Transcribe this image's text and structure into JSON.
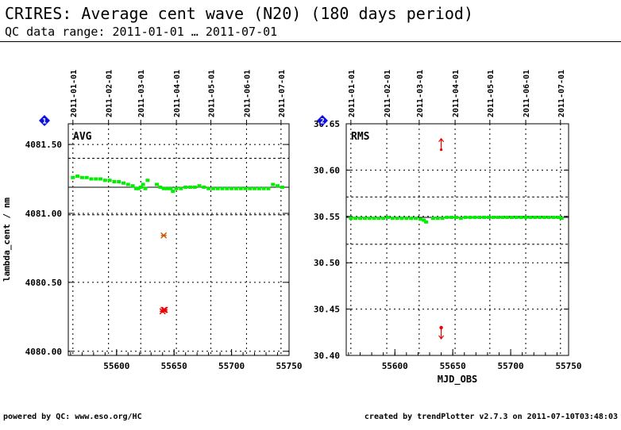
{
  "header": {
    "title": "CRIRES: Average cent wave (N20) (180 days period)",
    "subtitle": "QC data range: 2011-01-01 … 2011-07-01"
  },
  "footer": {
    "left": "powered by QC: www.eso.org/HC",
    "right": "created by trendPlotter v2.7.3 on 2011-07-10T03:48:03"
  },
  "colors": {
    "data": "#00ee00",
    "outlier_dark": "#cc5500",
    "outlier": "#ee0000",
    "marker": "#1010dd"
  },
  "chart_data": [
    {
      "type": "scatter",
      "panel_label": "AVG",
      "marker_label": "1",
      "ylabel": "lambda_cent / nm",
      "xlabel": "",
      "xlim": [
        55558,
        55750
      ],
      "ylim": [
        4079.97,
        4081.65
      ],
      "xticks": [
        55600,
        55650,
        55700,
        55750
      ],
      "yticks": [
        4080.0,
        4080.5,
        4081.0,
        4081.5
      ],
      "ytick_labels": [
        "4080.00",
        "4080.50",
        "4081.00",
        "4081.50"
      ],
      "date_ticks": [
        {
          "mjd": 55562,
          "label": "2011-01-01"
        },
        {
          "mjd": 55593,
          "label": "2011-02-01"
        },
        {
          "mjd": 55621,
          "label": "2011-03-01"
        },
        {
          "mjd": 55652,
          "label": "2011-04-01"
        },
        {
          "mjd": 55682,
          "label": "2011-05-01"
        },
        {
          "mjd": 55713,
          "label": "2011-06-01"
        },
        {
          "mjd": 55743,
          "label": "2011-07-01"
        }
      ],
      "reference_line": 4081.19,
      "threshold_lines": [
        4081.4,
        4080.99
      ],
      "series": [
        {
          "role": "data",
          "x": [
            55562,
            55566,
            55570,
            55574,
            55578,
            55582,
            55586,
            55590,
            55594,
            55598,
            55602,
            55606,
            55610,
            55614,
            55617,
            55619,
            55621,
            55623,
            55625,
            55627,
            55635,
            55638,
            55641,
            55644,
            55647,
            55649,
            55652,
            55656,
            55660,
            55664,
            55668,
            55672,
            55676,
            55680,
            55684,
            55688,
            55692,
            55696,
            55700,
            55704,
            55708,
            55712,
            55716,
            55720,
            55724,
            55728,
            55732,
            55736,
            55740,
            55744
          ],
          "y": [
            4081.26,
            4081.27,
            4081.26,
            4081.26,
            4081.25,
            4081.25,
            4081.25,
            4081.24,
            4081.24,
            4081.23,
            4081.23,
            4081.22,
            4081.21,
            4081.2,
            4081.18,
            4081.18,
            4081.19,
            4081.21,
            4081.18,
            4081.24,
            4081.21,
            4081.19,
            4081.18,
            4081.18,
            4081.18,
            4081.16,
            4081.18,
            4081.18,
            4081.19,
            4081.19,
            4081.19,
            4081.2,
            4081.19,
            4081.18,
            4081.18,
            4081.18,
            4081.18,
            4081.18,
            4081.18,
            4081.18,
            4081.18,
            4081.18,
            4081.18,
            4081.18,
            4081.18,
            4081.18,
            4081.18,
            4081.21,
            4081.2,
            4081.19
          ]
        },
        {
          "role": "outlier_dark",
          "x": [
            55641
          ],
          "y": [
            4080.84
          ]
        },
        {
          "role": "outlier",
          "x": [
            55640,
            55641,
            55642
          ],
          "y": [
            4080.29,
            4080.3,
            4080.3
          ]
        }
      ]
    },
    {
      "type": "scatter",
      "panel_label": "RMS",
      "marker_label": "2",
      "ylabel": "",
      "xlabel": "MJD_OBS",
      "xlim": [
        55558,
        55750
      ],
      "ylim": [
        30.4,
        30.65
      ],
      "xticks": [
        55600,
        55650,
        55700,
        55750
      ],
      "yticks": [
        30.4,
        30.45,
        30.5,
        30.55,
        30.6,
        30.65
      ],
      "ytick_labels": [
        "30.40",
        "30.45",
        "30.50",
        "30.55",
        "30.60",
        "30.65"
      ],
      "date_ticks": [
        {
          "mjd": 55562,
          "label": "2011-01-01"
        },
        {
          "mjd": 55593,
          "label": "2011-02-01"
        },
        {
          "mjd": 55621,
          "label": "2011-03-01"
        },
        {
          "mjd": 55652,
          "label": "2011-04-01"
        },
        {
          "mjd": 55682,
          "label": "2011-05-01"
        },
        {
          "mjd": 55713,
          "label": "2011-06-01"
        },
        {
          "mjd": 55743,
          "label": "2011-07-01"
        }
      ],
      "reference_line": 30.549,
      "threshold_lines": [
        30.571,
        30.52
      ],
      "series": [
        {
          "role": "data",
          "x": [
            55562,
            55566,
            55570,
            55574,
            55578,
            55582,
            55586,
            55590,
            55594,
            55598,
            55602,
            55606,
            55610,
            55614,
            55618,
            55622,
            55625,
            55627,
            55633,
            55637,
            55641,
            55645,
            55649,
            55653,
            55657,
            55661,
            55665,
            55669,
            55673,
            55677,
            55681,
            55685,
            55689,
            55693,
            55697,
            55701,
            55705,
            55709,
            55713,
            55717,
            55721,
            55725,
            55729,
            55733,
            55737,
            55741,
            55744
          ],
          "y": [
            30.548,
            30.548,
            30.548,
            30.548,
            30.548,
            30.548,
            30.548,
            30.548,
            30.549,
            30.548,
            30.548,
            30.548,
            30.548,
            30.548,
            30.548,
            30.547,
            30.546,
            30.544,
            30.548,
            30.548,
            30.548,
            30.549,
            30.549,
            30.549,
            30.548,
            30.549,
            30.549,
            30.549,
            30.549,
            30.549,
            30.549,
            30.549,
            30.549,
            30.549,
            30.549,
            30.549,
            30.549,
            30.549,
            30.549,
            30.549,
            30.549,
            30.549,
            30.549,
            30.549,
            30.549,
            30.549,
            30.548
          ]
        },
        {
          "role": "outlier_up",
          "x": [
            55640
          ],
          "y": [
            30.622
          ]
        },
        {
          "role": "outlier_down",
          "x": [
            55640
          ],
          "y": [
            30.43
          ]
        }
      ]
    }
  ]
}
